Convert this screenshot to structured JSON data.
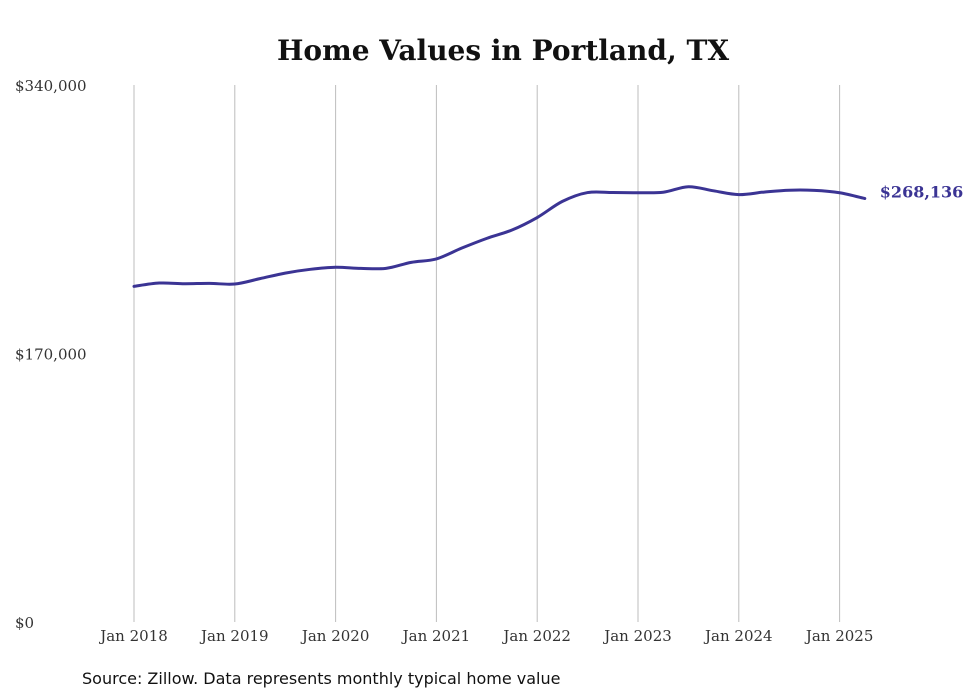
{
  "chart_data": {
    "type": "line",
    "title": "Home Values in Portland, TX",
    "source": "Source: Zillow. Data represents monthly typical home value",
    "ylim": [
      0,
      340000
    ],
    "y_ticks": [
      {
        "value": 0,
        "label": "$0"
      },
      {
        "value": 170000,
        "label": "$170,000"
      },
      {
        "value": 340000,
        "label": "$340,000"
      }
    ],
    "x_ticks": [
      {
        "value": "2018-01",
        "label": "Jan 2018"
      },
      {
        "value": "2019-01",
        "label": "Jan 2019"
      },
      {
        "value": "2020-01",
        "label": "Jan 2020"
      },
      {
        "value": "2021-01",
        "label": "Jan 2021"
      },
      {
        "value": "2022-01",
        "label": "Jan 2022"
      },
      {
        "value": "2023-01",
        "label": "Jan 2023"
      },
      {
        "value": "2024-01",
        "label": "Jan 2024"
      },
      {
        "value": "2025-01",
        "label": "Jan 2025"
      }
    ],
    "grid": {
      "vertical": true,
      "horizontal": false
    },
    "end_label": "$268,136",
    "series": [
      {
        "color": "#3b3494",
        "x": [
          "2018-01",
          "2018-04",
          "2018-07",
          "2018-10",
          "2019-01",
          "2019-04",
          "2019-07",
          "2019-10",
          "2020-01",
          "2020-04",
          "2020-07",
          "2020-10",
          "2021-01",
          "2021-04",
          "2021-07",
          "2021-10",
          "2022-01",
          "2022-04",
          "2022-07",
          "2022-10",
          "2023-01",
          "2023-04",
          "2023-07",
          "2023-10",
          "2024-01",
          "2024-04",
          "2024-07",
          "2024-10",
          "2025-01",
          "2025-04"
        ],
        "values": [
          212500,
          214600,
          214200,
          214400,
          214000,
          217400,
          220900,
          223300,
          224600,
          223900,
          223900,
          227700,
          229900,
          236700,
          242900,
          248200,
          256100,
          266300,
          271900,
          271900,
          271800,
          272100,
          275600,
          273000,
          270600,
          272200,
          273400,
          273300,
          271800,
          268136
        ]
      }
    ]
  }
}
